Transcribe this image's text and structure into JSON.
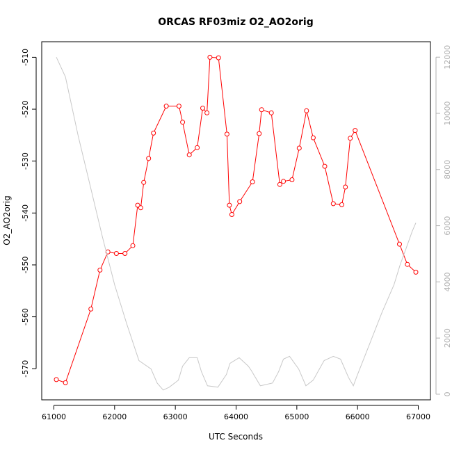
{
  "chart_data": {
    "type": "line",
    "title": "ORCAS RF03miz O2_AO2orig",
    "xlabel": "UTC Seconds",
    "ylabel": "O2_AO2orig",
    "xlim": [
      60800,
      67200
    ],
    "ylim": [
      -576,
      -507
    ],
    "x_ticks": [
      61000,
      62000,
      63000,
      64000,
      65000,
      66000,
      67000
    ],
    "y_ticks": [
      -510,
      -520,
      -530,
      -540,
      -550,
      -560,
      -570
    ],
    "y2lim": [
      -200,
      12550
    ],
    "y2_ticks": [
      0,
      2000,
      4000,
      6000,
      8000,
      10000,
      12000
    ],
    "grid": false,
    "colors": {
      "primary": "#ff0000",
      "secondary": "#c8c8c8"
    },
    "series": [
      {
        "axis": "left",
        "style": "line+points",
        "x": [
          61040,
          61190,
          61610,
          61760,
          61890,
          62030,
          62170,
          62300,
          62380,
          62430,
          62480,
          62560,
          62640,
          62850,
          63060,
          63120,
          63230,
          63360,
          63450,
          63520,
          63570,
          63710,
          63850,
          63890,
          63930,
          64060,
          64270,
          64380,
          64420,
          64580,
          64720,
          64780,
          64920,
          65040,
          65160,
          65270,
          65460,
          65600,
          65740,
          65800,
          65880,
          65960,
          66690,
          66820,
          66960
        ],
        "y": [
          -572.1,
          -572.7,
          -558.5,
          -551,
          -547.5,
          -547.8,
          -547.8,
          -546.3,
          -538.5,
          -539,
          -534.1,
          -529.5,
          -524.6,
          -519.4,
          -519.4,
          -522.5,
          -528.8,
          -527.4,
          -519.8,
          -520.7,
          -510,
          -510.1,
          -524.8,
          -538.5,
          -540.3,
          -537.8,
          -534,
          -524.7,
          -520.1,
          -520.7,
          -534.5,
          -533.9,
          -533.6,
          -527.5,
          -520.3,
          -525.5,
          -531,
          -538.2,
          -538.4,
          -535,
          -525.6,
          -524.1,
          -546,
          -549.9,
          -551.4
        ]
      },
      {
        "axis": "right",
        "style": "line",
        "x": [
          61040,
          61190,
          61400,
          61600,
          61800,
          62000,
          62200,
          62400,
          62600,
          62700,
          62800,
          62900,
          63050,
          63120,
          63230,
          63360,
          63430,
          63530,
          63700,
          63840,
          63900,
          64050,
          64200,
          64250,
          64400,
          64600,
          64700,
          64780,
          64880,
          65030,
          65150,
          65270,
          65450,
          65600,
          65720,
          65850,
          65930,
          66000,
          66200,
          66400,
          66600,
          66700,
          66800,
          66900,
          66960
        ],
        "y": [
          12000,
          11300,
          9200,
          7400,
          5600,
          3900,
          2500,
          1200,
          900,
          400,
          150,
          250,
          500,
          1000,
          1300,
          1300,
          800,
          300,
          250,
          700,
          1100,
          1300,
          1000,
          850,
          300,
          400,
          800,
          1250,
          1350,
          900,
          300,
          500,
          1200,
          1350,
          1250,
          600,
          300,
          700,
          1800,
          2900,
          3900,
          4600,
          5200,
          5800,
          6100
        ]
      }
    ]
  }
}
